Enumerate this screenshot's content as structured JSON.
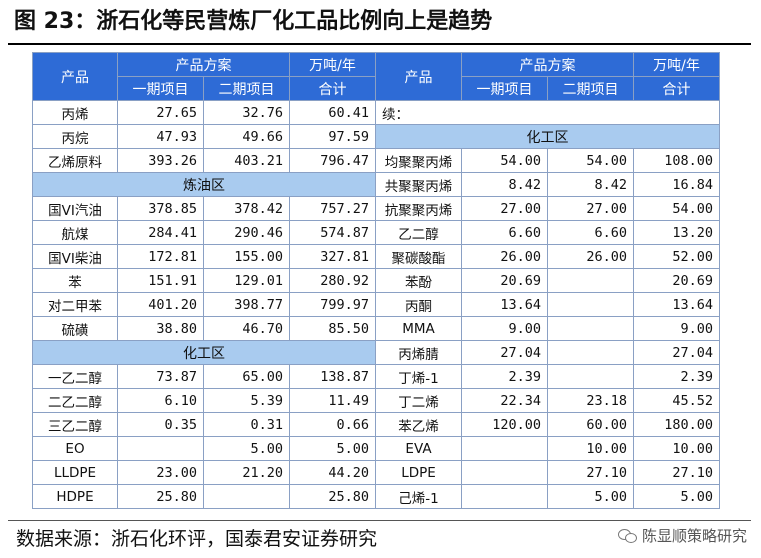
{
  "title": "图 23：浙石化等民营炼厂化工品比例向上是趋势",
  "header": {
    "product": "产品",
    "plan": "产品方案",
    "unit": "万吨/年",
    "phase1": "一期项目",
    "phase2": "二期项目",
    "total": "合计"
  },
  "left": {
    "top_rows": [
      {
        "name": "丙烯",
        "p1": "27.65",
        "p2": "32.76",
        "total": "60.41"
      },
      {
        "name": "丙烷",
        "p1": "47.93",
        "p2": "49.66",
        "total": "97.59"
      },
      {
        "name": "乙烯原料",
        "p1": "393.26",
        "p2": "403.21",
        "total": "796.47"
      }
    ],
    "section1": "炼油区",
    "refining_rows": [
      {
        "name": "国VI汽油",
        "p1": "378.85",
        "p2": "378.42",
        "total": "757.27"
      },
      {
        "name": "航煤",
        "p1": "284.41",
        "p2": "290.46",
        "total": "574.87"
      },
      {
        "name": "国VI柴油",
        "p1": "172.81",
        "p2": "155.00",
        "total": "327.81"
      },
      {
        "name": "苯",
        "p1": "151.91",
        "p2": "129.01",
        "total": "280.92"
      },
      {
        "name": "对二甲苯",
        "p1": "401.20",
        "p2": "398.77",
        "total": "799.97"
      },
      {
        "name": "硫磺",
        "p1": "38.80",
        "p2": "46.70",
        "total": "85.50"
      }
    ],
    "section2": "化工区",
    "chemical_rows": [
      {
        "name": "一乙二醇",
        "p1": "73.87",
        "p2": "65.00",
        "total": "138.87"
      },
      {
        "name": "二乙二醇",
        "p1": "6.10",
        "p2": "5.39",
        "total": "11.49"
      },
      {
        "name": "三乙二醇",
        "p1": "0.35",
        "p2": "0.31",
        "total": "0.66"
      },
      {
        "name": "EO",
        "p1": "",
        "p2": "5.00",
        "total": "5.00"
      },
      {
        "name": "LLDPE",
        "p1": "23.00",
        "p2": "21.20",
        "total": "44.20"
      },
      {
        "name": "HDPE",
        "p1": "25.80",
        "p2": "",
        "total": "25.80"
      }
    ]
  },
  "right": {
    "continued": "续：",
    "section": "化工区",
    "rows": [
      {
        "name": "均聚聚丙烯",
        "p1": "54.00",
        "p2": "54.00",
        "total": "108.00"
      },
      {
        "name": "共聚聚丙烯",
        "p1": "8.42",
        "p2": "8.42",
        "total": "16.84"
      },
      {
        "name": "抗聚聚丙烯",
        "p1": "27.00",
        "p2": "27.00",
        "total": "54.00"
      },
      {
        "name": "乙二醇",
        "p1": "6.60",
        "p2": "6.60",
        "total": "13.20"
      },
      {
        "name": "聚碳酸酯",
        "p1": "26.00",
        "p2": "26.00",
        "total": "52.00"
      },
      {
        "name": "苯酚",
        "p1": "20.69",
        "p2": "",
        "total": "20.69"
      },
      {
        "name": "丙酮",
        "p1": "13.64",
        "p2": "",
        "total": "13.64"
      },
      {
        "name": "MMA",
        "p1": "9.00",
        "p2": "",
        "total": "9.00"
      },
      {
        "name": "丙烯腈",
        "p1": "27.04",
        "p2": "",
        "total": "27.04"
      },
      {
        "name": "丁烯-1",
        "p1": "2.39",
        "p2": "",
        "total": "2.39"
      },
      {
        "name": "丁二烯",
        "p1": "22.34",
        "p2": "23.18",
        "total": "45.52"
      },
      {
        "name": "苯乙烯",
        "p1": "120.00",
        "p2": "60.00",
        "total": "180.00"
      },
      {
        "name": "EVA",
        "p1": "",
        "p2": "10.00",
        "total": "10.00"
      },
      {
        "name": "LDPE",
        "p1": "",
        "p2": "27.10",
        "total": "27.10"
      },
      {
        "name": "己烯-1",
        "p1": "",
        "p2": "5.00",
        "total": "5.00"
      }
    ]
  },
  "source": "数据来源：浙石化环评，国泰君安证券研究",
  "watermark": "陈显顺策略研究",
  "colors": {
    "header_bg": "#2e6bd6",
    "section_bg": "#a9cbef",
    "border": "#8aa0c4"
  }
}
